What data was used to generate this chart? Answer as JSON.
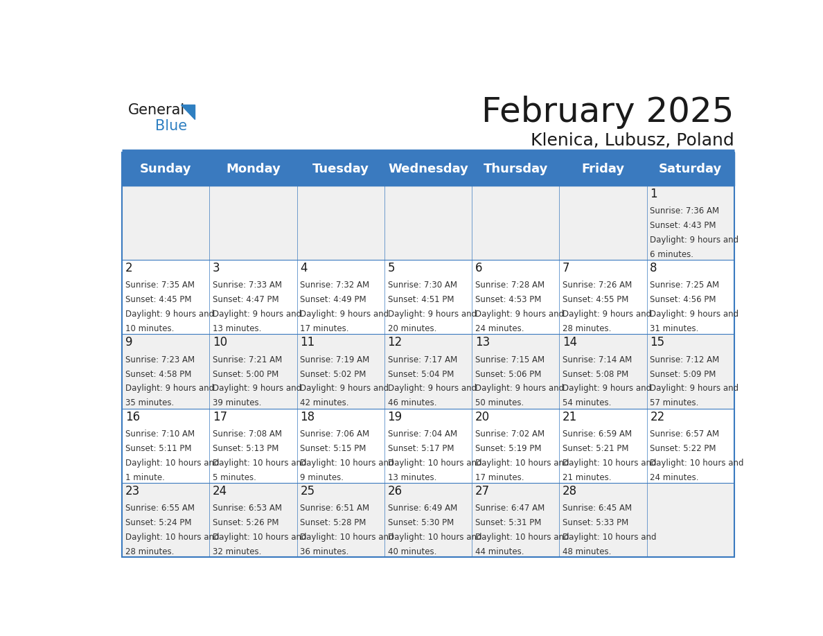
{
  "title": "February 2025",
  "subtitle": "Klenica, Lubusz, Poland",
  "header_bg": "#3a7abf",
  "header_text": "#ffffff",
  "cell_bg_odd": "#f0f0f0",
  "cell_bg_even": "#ffffff",
  "border_color": "#3a7abf",
  "day_names": [
    "Sunday",
    "Monday",
    "Tuesday",
    "Wednesday",
    "Thursday",
    "Friday",
    "Saturday"
  ],
  "days_data": [
    {
      "day": 1,
      "col": 6,
      "row": 0,
      "sunrise": "7:36 AM",
      "sunset": "4:43 PM",
      "daylight": "9 hours and 6 minutes."
    },
    {
      "day": 2,
      "col": 0,
      "row": 1,
      "sunrise": "7:35 AM",
      "sunset": "4:45 PM",
      "daylight": "9 hours and 10 minutes."
    },
    {
      "day": 3,
      "col": 1,
      "row": 1,
      "sunrise": "7:33 AM",
      "sunset": "4:47 PM",
      "daylight": "9 hours and 13 minutes."
    },
    {
      "day": 4,
      "col": 2,
      "row": 1,
      "sunrise": "7:32 AM",
      "sunset": "4:49 PM",
      "daylight": "9 hours and 17 minutes."
    },
    {
      "day": 5,
      "col": 3,
      "row": 1,
      "sunrise": "7:30 AM",
      "sunset": "4:51 PM",
      "daylight": "9 hours and 20 minutes."
    },
    {
      "day": 6,
      "col": 4,
      "row": 1,
      "sunrise": "7:28 AM",
      "sunset": "4:53 PM",
      "daylight": "9 hours and 24 minutes."
    },
    {
      "day": 7,
      "col": 5,
      "row": 1,
      "sunrise": "7:26 AM",
      "sunset": "4:55 PM",
      "daylight": "9 hours and 28 minutes."
    },
    {
      "day": 8,
      "col": 6,
      "row": 1,
      "sunrise": "7:25 AM",
      "sunset": "4:56 PM",
      "daylight": "9 hours and 31 minutes."
    },
    {
      "day": 9,
      "col": 0,
      "row": 2,
      "sunrise": "7:23 AM",
      "sunset": "4:58 PM",
      "daylight": "9 hours and 35 minutes."
    },
    {
      "day": 10,
      "col": 1,
      "row": 2,
      "sunrise": "7:21 AM",
      "sunset": "5:00 PM",
      "daylight": "9 hours and 39 minutes."
    },
    {
      "day": 11,
      "col": 2,
      "row": 2,
      "sunrise": "7:19 AM",
      "sunset": "5:02 PM",
      "daylight": "9 hours and 42 minutes."
    },
    {
      "day": 12,
      "col": 3,
      "row": 2,
      "sunrise": "7:17 AM",
      "sunset": "5:04 PM",
      "daylight": "9 hours and 46 minutes."
    },
    {
      "day": 13,
      "col": 4,
      "row": 2,
      "sunrise": "7:15 AM",
      "sunset": "5:06 PM",
      "daylight": "9 hours and 50 minutes."
    },
    {
      "day": 14,
      "col": 5,
      "row": 2,
      "sunrise": "7:14 AM",
      "sunset": "5:08 PM",
      "daylight": "9 hours and 54 minutes."
    },
    {
      "day": 15,
      "col": 6,
      "row": 2,
      "sunrise": "7:12 AM",
      "sunset": "5:09 PM",
      "daylight": "9 hours and 57 minutes."
    },
    {
      "day": 16,
      "col": 0,
      "row": 3,
      "sunrise": "7:10 AM",
      "sunset": "5:11 PM",
      "daylight": "10 hours and 1 minute."
    },
    {
      "day": 17,
      "col": 1,
      "row": 3,
      "sunrise": "7:08 AM",
      "sunset": "5:13 PM",
      "daylight": "10 hours and 5 minutes."
    },
    {
      "day": 18,
      "col": 2,
      "row": 3,
      "sunrise": "7:06 AM",
      "sunset": "5:15 PM",
      "daylight": "10 hours and 9 minutes."
    },
    {
      "day": 19,
      "col": 3,
      "row": 3,
      "sunrise": "7:04 AM",
      "sunset": "5:17 PM",
      "daylight": "10 hours and 13 minutes."
    },
    {
      "day": 20,
      "col": 4,
      "row": 3,
      "sunrise": "7:02 AM",
      "sunset": "5:19 PM",
      "daylight": "10 hours and 17 minutes."
    },
    {
      "day": 21,
      "col": 5,
      "row": 3,
      "sunrise": "6:59 AM",
      "sunset": "5:21 PM",
      "daylight": "10 hours and 21 minutes."
    },
    {
      "day": 22,
      "col": 6,
      "row": 3,
      "sunrise": "6:57 AM",
      "sunset": "5:22 PM",
      "daylight": "10 hours and 24 minutes."
    },
    {
      "day": 23,
      "col": 0,
      "row": 4,
      "sunrise": "6:55 AM",
      "sunset": "5:24 PM",
      "daylight": "10 hours and 28 minutes."
    },
    {
      "day": 24,
      "col": 1,
      "row": 4,
      "sunrise": "6:53 AM",
      "sunset": "5:26 PM",
      "daylight": "10 hours and 32 minutes."
    },
    {
      "day": 25,
      "col": 2,
      "row": 4,
      "sunrise": "6:51 AM",
      "sunset": "5:28 PM",
      "daylight": "10 hours and 36 minutes."
    },
    {
      "day": 26,
      "col": 3,
      "row": 4,
      "sunrise": "6:49 AM",
      "sunset": "5:30 PM",
      "daylight": "10 hours and 40 minutes."
    },
    {
      "day": 27,
      "col": 4,
      "row": 4,
      "sunrise": "6:47 AM",
      "sunset": "5:31 PM",
      "daylight": "10 hours and 44 minutes."
    },
    {
      "day": 28,
      "col": 5,
      "row": 4,
      "sunrise": "6:45 AM",
      "sunset": "5:33 PM",
      "daylight": "10 hours and 48 minutes."
    }
  ],
  "num_rows": 5,
  "num_cols": 7,
  "logo_general_color": "#1a1a1a",
  "logo_blue_color": "#2e7fc1",
  "title_fontsize": 36,
  "subtitle_fontsize": 18,
  "day_name_fontsize": 13,
  "day_num_fontsize": 12,
  "cell_text_fontsize": 8.5,
  "header_bar_color": "#3a7abf"
}
